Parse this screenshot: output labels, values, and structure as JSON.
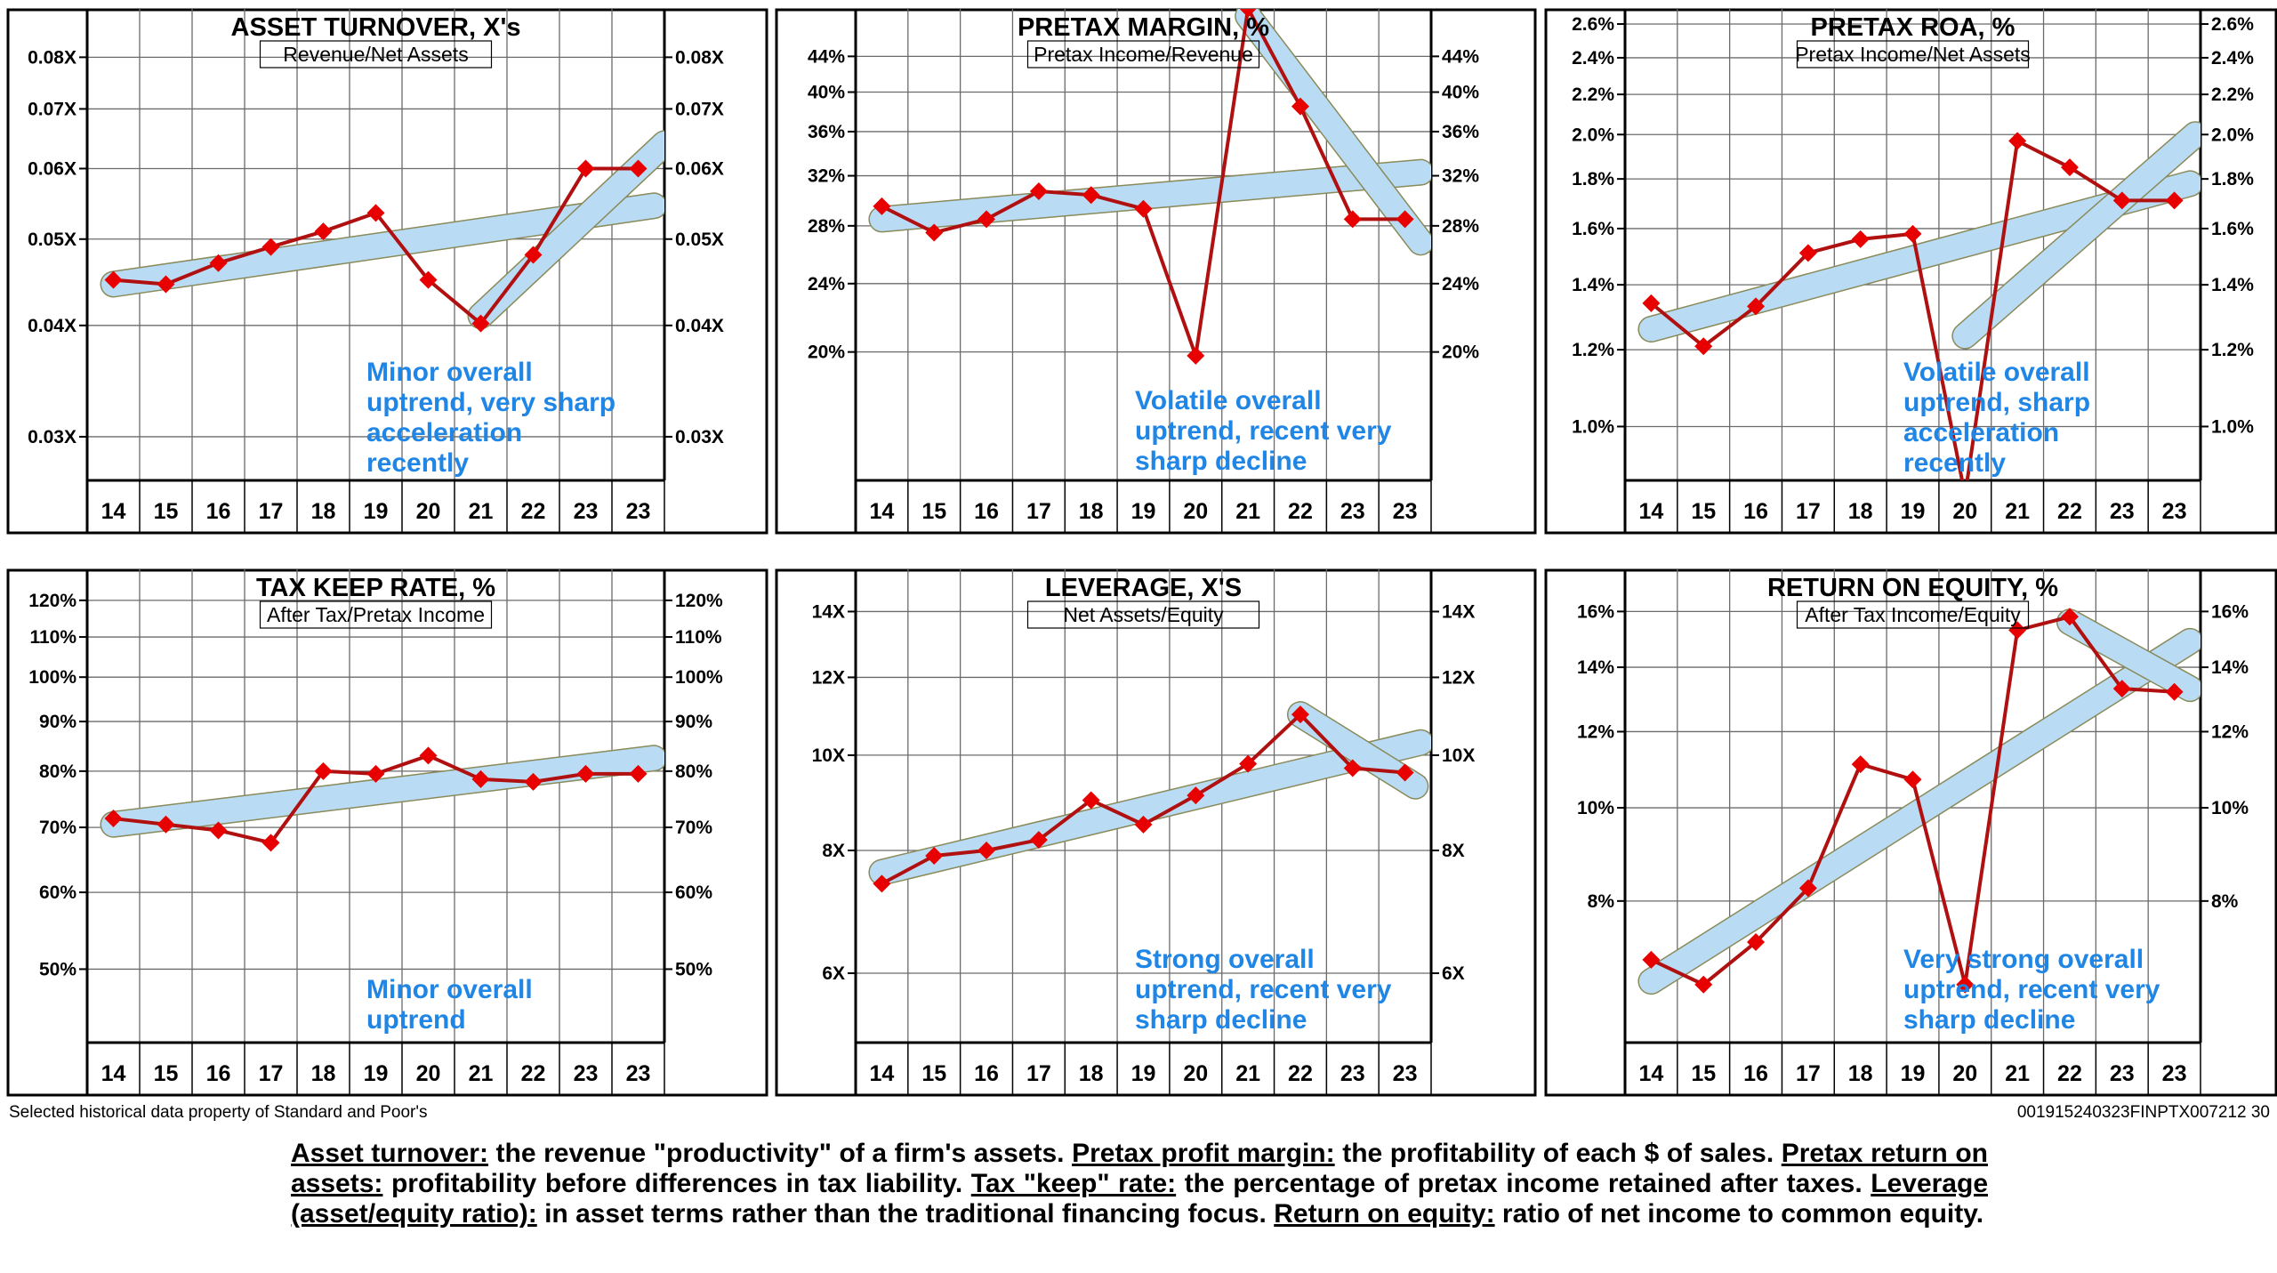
{
  "footer": {
    "source": "Selected historical data property of Standard and Poor's",
    "code": "001915240323FINPTX007212  30"
  },
  "glossary": [
    {
      "term": "Asset turnover:",
      "text": " the revenue \"productivity\" of a firm's assets. "
    },
    {
      "term": "Pretax profit margin:",
      "text": " the profitability of each $ of sales. "
    },
    {
      "term": "Pretax return on assets:",
      "text": " profitability before differences in tax liability. "
    },
    {
      "term": "Tax \"keep\" rate:",
      "text": " the percentage of pretax income retained after taxes. "
    },
    {
      "term": "Leverage (asset/equity ratio):",
      "text": " in asset terms rather than the traditional financing focus. "
    },
    {
      "term": "Return on equity:",
      "text": " ratio of net income to common equity."
    }
  ],
  "chart_data": [
    {
      "type": "line",
      "title": "ASSET TURNOVER, X's",
      "subtitle": "Revenue/Net Assets",
      "categories": [
        "14",
        "15",
        "16",
        "17",
        "18",
        "19",
        "20",
        "21",
        "22",
        "23",
        "23"
      ],
      "values": [
        0.045,
        0.0445,
        0.047,
        0.049,
        0.051,
        0.0535,
        0.045,
        0.0402,
        0.048,
        0.06,
        0.06
      ],
      "scale": "log",
      "ylim": [
        0.0268,
        0.089
      ],
      "yticks": [
        0.03,
        0.04,
        0.05,
        0.06,
        0.07,
        0.08
      ],
      "ytick_labels": [
        "0.03X",
        "0.04X",
        "0.05X",
        "0.06X",
        "0.07X",
        "0.08X"
      ],
      "right_axis": true,
      "trends": [
        {
          "x1": 0,
          "y1": 0.0445,
          "x2": 10.3,
          "y2": 0.0545
        },
        {
          "x1": 7,
          "y1": 0.041,
          "x2": 10.5,
          "y2": 0.064
        }
      ],
      "annotation": [
        "Minor overall",
        "uptrend, very sharp",
        "acceleration",
        "recently"
      ]
    },
    {
      "type": "line",
      "title": "PRETAX MARGIN, %",
      "subtitle": "Pretax Income/Revenue",
      "categories": [
        "14",
        "15",
        "16",
        "17",
        "18",
        "19",
        "20",
        "21",
        "22",
        "23",
        "23"
      ],
      "values": [
        29.5,
        27.5,
        28.5,
        30.7,
        30.4,
        29.3,
        19.8,
        50.0,
        38.5,
        28.5,
        28.5
      ],
      "scale": "log",
      "ylim": [
        14.2,
        49
      ],
      "yticks": [
        20,
        24,
        28,
        32,
        36,
        40,
        44
      ],
      "ytick_labels": [
        "20%",
        "24%",
        "28%",
        "32%",
        "36%",
        "40%",
        "44%"
      ],
      "right_axis": true,
      "trends": [
        {
          "x1": 0,
          "y1": 28.5,
          "x2": 10.3,
          "y2": 32.3
        },
        {
          "x1": 7,
          "y1": 49,
          "x2": 10.3,
          "y2": 26.8
        }
      ],
      "annotation": [
        "Volatile overall",
        "uptrend, recent very",
        "sharp decline"
      ]
    },
    {
      "type": "line",
      "title": "PRETAX ROA, %",
      "subtitle": "Pretax Income/Net Assets",
      "categories": [
        "14",
        "15",
        "16",
        "17",
        "18",
        "19",
        "20",
        "21",
        "22",
        "23",
        "23"
      ],
      "values": [
        1.34,
        1.21,
        1.33,
        1.51,
        1.56,
        1.58,
        0.85,
        1.97,
        1.85,
        1.71,
        1.71
      ],
      "scale": "log",
      "ylim": [
        0.88,
        2.65
      ],
      "yticks": [
        1.0,
        1.2,
        1.4,
        1.6,
        1.8,
        2.0,
        2.2,
        2.4,
        2.6
      ],
      "ytick_labels": [
        "1.0%",
        "1.2%",
        "1.4%",
        "1.6%",
        "1.8%",
        "2.0%",
        "2.2%",
        "2.4%",
        "2.6%"
      ],
      "right_axis": true,
      "trends": [
        {
          "x1": 0,
          "y1": 1.26,
          "x2": 10.3,
          "y2": 1.78
        },
        {
          "x1": 6,
          "y1": 1.24,
          "x2": 10.4,
          "y2": 2.0
        }
      ],
      "annotation": [
        "Volatile overall",
        "uptrend, sharp",
        "acceleration",
        "recently"
      ]
    },
    {
      "type": "line",
      "title": "TAX KEEP RATE, %",
      "subtitle": "After Tax/Pretax Income",
      "categories": [
        "14",
        "15",
        "16",
        "17",
        "18",
        "19",
        "20",
        "21",
        "22",
        "23",
        "23"
      ],
      "values": [
        71.5,
        70.5,
        69.5,
        67.5,
        80.0,
        79.5,
        83.0,
        78.5,
        78.0,
        79.5,
        79.5
      ],
      "scale": "log",
      "ylim": [
        42,
        127
      ],
      "yticks": [
        50,
        60,
        70,
        80,
        90,
        100,
        110,
        120
      ],
      "ytick_labels": [
        "50%",
        "60%",
        "70%",
        "80%",
        "90%",
        "100%",
        "110%",
        "120%"
      ],
      "right_axis": true,
      "trends": [
        {
          "x1": 0,
          "y1": 70.5,
          "x2": 10.3,
          "y2": 82.5
        }
      ],
      "annotation": [
        "Minor overall",
        "uptrend"
      ]
    },
    {
      "type": "line",
      "title": "LEVERAGE, X'S",
      "subtitle": "Net Assets/Equity",
      "categories": [
        "14",
        "15",
        "16",
        "17",
        "18",
        "19",
        "20",
        "21",
        "22",
        "23",
        "23"
      ],
      "values": [
        7.4,
        7.9,
        8.0,
        8.2,
        9.0,
        8.5,
        9.1,
        9.8,
        11.0,
        9.7,
        9.6
      ],
      "scale": "log",
      "ylim": [
        5.1,
        15.2
      ],
      "yticks": [
        6,
        8,
        10,
        12,
        14
      ],
      "ytick_labels": [
        "6X",
        "8X",
        "10X",
        "12X",
        "14X"
      ],
      "right_axis": true,
      "trends": [
        {
          "x1": 0,
          "y1": 7.6,
          "x2": 10.3,
          "y2": 10.3
        },
        {
          "x1": 8,
          "y1": 11.0,
          "x2": 10.2,
          "y2": 9.3
        }
      ],
      "annotation": [
        "Strong overall",
        "uptrend, recent very",
        "sharp decline"
      ]
    },
    {
      "type": "line",
      "title": "RETURN ON EQUITY, %",
      "subtitle": "After Tax Income/Equity",
      "categories": [
        "14",
        "15",
        "16",
        "17",
        "18",
        "19",
        "20",
        "21",
        "22",
        "23",
        "23"
      ],
      "values": [
        6.95,
        6.55,
        7.25,
        8.25,
        11.1,
        10.7,
        6.55,
        15.3,
        15.8,
        13.3,
        13.2
      ],
      "scale": "log",
      "ylim": [
        5.7,
        17.4
      ],
      "yticks": [
        8,
        10,
        12,
        14,
        16
      ],
      "ytick_labels": [
        "8%",
        "10%",
        "12%",
        "14%",
        "16%"
      ],
      "right_axis": true,
      "trends": [
        {
          "x1": 0,
          "y1": 6.6,
          "x2": 10.3,
          "y2": 14.9
        },
        {
          "x1": 8,
          "y1": 15.6,
          "x2": 10.3,
          "y2": 13.3
        }
      ],
      "annotation": [
        "Very strong overall",
        "uptrend, recent very",
        "sharp decline"
      ]
    }
  ]
}
